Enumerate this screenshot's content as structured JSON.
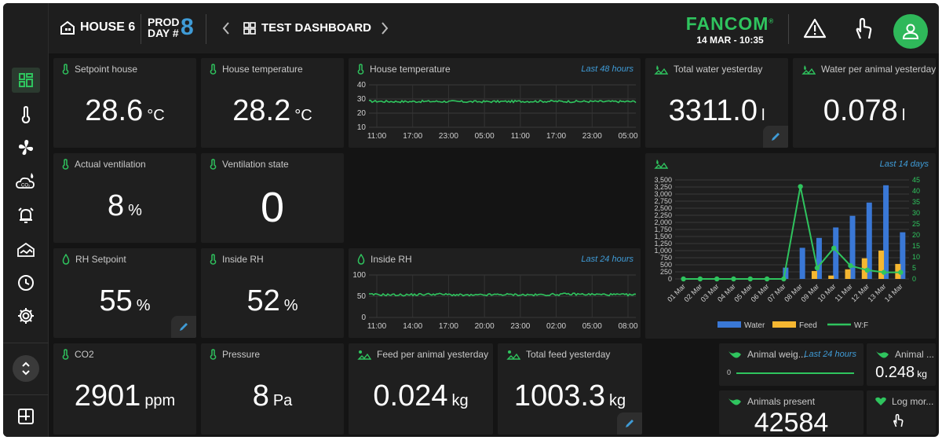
{
  "header": {
    "house": "HOUSE 6",
    "prod_line1": "PROD",
    "prod_line2": "DAY #",
    "prod_day": "8",
    "dashboard": "TEST DASHBOARD",
    "brand": "FANCOM",
    "brand_reg": "®",
    "datetime": "14 MAR - 10:35"
  },
  "cards": {
    "setpoint_house": {
      "title": "Setpoint house",
      "value": "28.6",
      "unit": "°C"
    },
    "house_temperature": {
      "title": "House temperature",
      "value": "28.2",
      "unit": "°C"
    },
    "total_water": {
      "title": "Total water yesterday",
      "value": "3311.0",
      "unit": "l"
    },
    "water_per_animal": {
      "title": "Water per animal yesterday",
      "value": "0.078",
      "unit": "l"
    },
    "actual_ventilation": {
      "title": "Actual ventilation",
      "value": "8",
      "unit": "%"
    },
    "ventilation_state": {
      "title": "Ventilation state",
      "value": "0"
    },
    "rh_setpoint": {
      "title": "RH Setpoint",
      "value": "55",
      "unit": "%"
    },
    "inside_rh": {
      "title": "Inside RH",
      "value": "52",
      "unit": "%"
    },
    "co2": {
      "title": "CO2",
      "value": "2901",
      "unit": "ppm"
    },
    "pressure": {
      "title": "Pressure",
      "value": "8",
      "unit": "Pa"
    },
    "feed_per_animal": {
      "title": "Feed per animal yesterday",
      "value": "0.024",
      "unit": "kg"
    },
    "total_feed": {
      "title": "Total feed yesterday",
      "value": "1003.3",
      "unit": "kg"
    },
    "animal_weight": {
      "title": "Animal weig...",
      "link": "Last 24 hours",
      "zero": "0"
    },
    "animal_small": {
      "title": "Animal ...",
      "value": "0.248",
      "unit": "kg"
    },
    "animals_present": {
      "title": "Animals present",
      "value": "42584"
    },
    "log_mortality": {
      "title": "Log mor..."
    }
  },
  "chart_data": [
    {
      "type": "line",
      "title": "House temperature",
      "link": "Last 48 hours",
      "x_ticks": [
        "11:00",
        "17:00",
        "23:00",
        "05:00",
        "11:00",
        "17:00",
        "23:00",
        "05:00"
      ],
      "y_ticks": [
        10,
        20,
        30,
        40
      ],
      "ylim": [
        10,
        40
      ],
      "series": [
        {
          "values": [
            28.4,
            28.2,
            28.3,
            28.1,
            28.2,
            28.4,
            28.3,
            28.2,
            28.2
          ]
        }
      ],
      "color": "#2fc45e"
    },
    {
      "type": "line",
      "title": "Inside RH",
      "link": "Last 24 hours",
      "x_ticks": [
        "11:00",
        "14:00",
        "17:00",
        "20:00",
        "23:00",
        "02:00",
        "05:00",
        "08:00"
      ],
      "y_ticks": [
        0,
        50,
        100
      ],
      "ylim": [
        0,
        100
      ],
      "series": [
        {
          "values": [
            54,
            53,
            55,
            52,
            54,
            53,
            55,
            54,
            53
          ]
        }
      ],
      "color": "#2fc45e"
    },
    {
      "type": "bar",
      "link": "Last 14 days",
      "categories": [
        "01 Mar",
        "02 Mar",
        "03 Mar",
        "04 Mar",
        "05 Mar",
        "06 Mar",
        "07 Mar",
        "08 Mar",
        "09 Mar",
        "10 Mar",
        "11 Mar",
        "12 Mar",
        "13 Mar",
        "14 Mar"
      ],
      "y_left_ticks": [
        "0",
        "250",
        "500",
        "750",
        "1,000",
        "1,250",
        "1,500",
        "1,750",
        "2,000",
        "2,250",
        "2,500",
        "2,750",
        "3,000",
        "3,250",
        "3,500"
      ],
      "y_right_ticks": [
        "0",
        "5",
        "10",
        "15",
        "20",
        "25",
        "30",
        "35",
        "40",
        "45"
      ],
      "ylim_left": [
        0,
        3500
      ],
      "ylim_right": [
        0,
        45
      ],
      "series": [
        {
          "name": "Water",
          "axis": "left",
          "kind": "bar",
          "color": "#3a78d6",
          "values": [
            0,
            0,
            0,
            0,
            0,
            0,
            400,
            1100,
            1450,
            1820,
            2230,
            2700,
            3311,
            1650
          ]
        },
        {
          "name": "Feed",
          "axis": "left",
          "kind": "bar",
          "color": "#f5b731",
          "values": [
            0,
            0,
            0,
            0,
            0,
            0,
            0,
            0,
            280,
            120,
            340,
            730,
            1003,
            530
          ]
        },
        {
          "name": "W:F",
          "axis": "right",
          "kind": "line",
          "color": "#2fc45e",
          "values": [
            0,
            0,
            0,
            0,
            0,
            0,
            0,
            42,
            5,
            14,
            6,
            4,
            3,
            3
          ]
        }
      ],
      "legend_position": "bottom"
    }
  ],
  "sidebar": {
    "items": [
      {
        "icon": "dashboard-icon",
        "active": true
      },
      {
        "icon": "thermometer-icon"
      },
      {
        "icon": "fan-icon"
      },
      {
        "icon": "co2-cloud-icon"
      },
      {
        "icon": "alarm-bell-icon"
      },
      {
        "icon": "house-icon"
      },
      {
        "icon": "clock-icon"
      },
      {
        "icon": "gear-icon"
      }
    ],
    "bottom": {
      "icon": "add-widget-icon"
    }
  },
  "colors": {
    "accent": "#2fc45e",
    "link": "#3f9bd6",
    "card": "#1f1f1f",
    "background": "#141414"
  }
}
